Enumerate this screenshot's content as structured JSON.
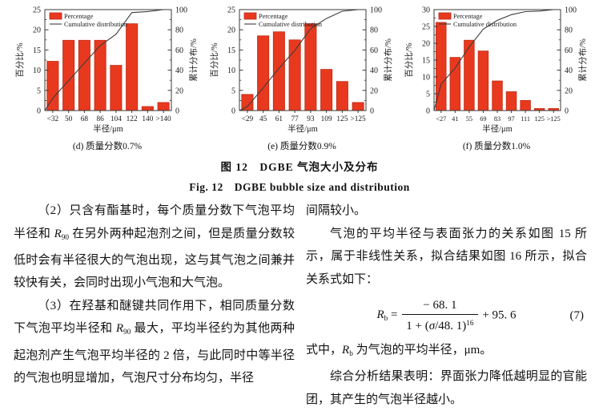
{
  "figure_caption": {
    "zh": "图 12　DGBE 气泡大小及分布",
    "en": "Fig. 12　DGBE bubble size and distribution"
  },
  "chart_data": [
    {
      "type": "bar",
      "subtype": "histogram-with-cumulative-line",
      "caption": "(d) 质量分数0.7%",
      "categories": [
        "<32",
        "50",
        "68",
        "86",
        "104",
        "122",
        "140",
        ">140"
      ],
      "series": [
        {
          "name": "Percentage",
          "type": "bar",
          "values": [
            12.2,
            17.4,
            17.4,
            17.4,
            11.2,
            21.5,
            1.0,
            2.0
          ]
        },
        {
          "name": "Cumulative distribution",
          "type": "line",
          "values": [
            12.2,
            29.6,
            47.0,
            64.4,
            75.6,
            97.1,
            98.1,
            100
          ]
        }
      ],
      "xlabel": "半径/μm",
      "ylabel_left": "百分比/%",
      "ylabel_right": "累计分布/%",
      "ylim_left": [
        0,
        25
      ],
      "ylim_right": [
        0,
        100
      ],
      "yticks_left": [
        0,
        5,
        10,
        15,
        20,
        25
      ],
      "yticks_right": [
        0,
        20,
        40,
        60,
        80,
        100
      ],
      "legend": [
        "Percentage",
        "Cumulative distribution"
      ],
      "legend_position": "top-left",
      "grid": false,
      "bar_color": "#e8391f",
      "bar_stroke": "#bf2a12",
      "line_color": "#3d3d3d",
      "axis_color": "#3a3a3a"
    },
    {
      "type": "bar",
      "subtype": "histogram-with-cumulative-line",
      "caption": "(e) 质量分数0.9%",
      "categories": [
        "<29",
        "45",
        "61",
        "77",
        "93",
        "109",
        "125",
        ">125"
      ],
      "series": [
        {
          "name": "Percentage",
          "type": "bar",
          "values": [
            4.0,
            18.5,
            19.5,
            17.5,
            21.5,
            10.2,
            7.2,
            2.0
          ]
        },
        {
          "name": "Cumulative distribution",
          "type": "line",
          "values": [
            4.0,
            22.5,
            42.0,
            59.5,
            81.0,
            91.2,
            98.4,
            100
          ]
        }
      ],
      "xlabel": "半径/μm",
      "ylabel_left": "百分比/%",
      "ylabel_right": "累计分布/%",
      "ylim_left": [
        0,
        25
      ],
      "ylim_right": [
        0,
        100
      ],
      "yticks_left": [
        0,
        5,
        10,
        15,
        20,
        25
      ],
      "yticks_right": [
        0,
        20,
        40,
        60,
        80,
        100
      ],
      "legend": [
        "Percentage",
        "Cumulative distribution"
      ],
      "legend_position": "top-left",
      "grid": false,
      "bar_color": "#e8391f",
      "bar_stroke": "#bf2a12",
      "line_color": "#3d3d3d",
      "axis_color": "#3a3a3a"
    },
    {
      "type": "bar",
      "subtype": "histogram-with-cumulative-line",
      "caption": "(f) 质量分数1.0%",
      "categories": [
        "<27",
        "41",
        "55",
        "69",
        "83",
        "97",
        "111",
        "125",
        ">125"
      ],
      "series": [
        {
          "name": "Percentage",
          "type": "bar",
          "values": [
            26.2,
            15.8,
            20.9,
            17.7,
            8.8,
            5.6,
            3.0,
            0.6,
            0.6
          ]
        },
        {
          "name": "Cumulative distribution",
          "type": "line",
          "values": [
            26.2,
            42.0,
            62.9,
            80.6,
            89.4,
            95.0,
            98.0,
            98.6,
            100
          ]
        }
      ],
      "xlabel": "半径/μm",
      "ylabel_left": "百分比/%",
      "ylabel_right": "累计分布/%",
      "ylim_left": [
        0,
        30
      ],
      "ylim_right": [
        0,
        100
      ],
      "yticks_left": [
        0,
        5,
        10,
        15,
        20,
        25,
        30
      ],
      "yticks_right": [
        0,
        20,
        40,
        60,
        80,
        100
      ],
      "legend": [
        "Percentage",
        "Cumulative distribution"
      ],
      "legend_position": "top-left",
      "grid": false,
      "bar_color": "#e8391f",
      "bar_stroke": "#bf2a12",
      "line_color": "#3d3d3d",
      "axis_color": "#3a3a3a"
    }
  ],
  "body": {
    "left": {
      "p1": [
        {
          "t": "（2）只含有酯基时，每个质量分数下气泡平均半径和 "
        },
        {
          "t": "R",
          "i": true
        },
        {
          "t": "90",
          "sub": true
        },
        {
          "t": " 在另外两种起泡剂之间，但是质量分数较低时会有半径很大的气泡出现，这与其气泡之间兼并较快有关，会同时出现小气泡和大气泡。"
        }
      ],
      "p2": [
        {
          "t": "（3）在羟基和醚键共同作用下，相同质量分数下气泡平均半径和 "
        },
        {
          "t": "R",
          "i": true
        },
        {
          "t": "90",
          "sub": true
        },
        {
          "t": " 最大，平均半径约为其他两种起泡剂产生气泡平均半径的 2 倍，与此同时中等半径的气泡也明显增加，气泡尺寸分布均匀，半径"
        }
      ]
    },
    "right": {
      "p0": "间隔较小。",
      "p1": "气泡的平均半径与表面张力的关系如图 15 所示，属于非线性关系，拟合结果如图 16 所示，拟合关系式如下：",
      "equation": {
        "lhs": [
          {
            "t": "R",
            "i": true
          },
          {
            "t": "b",
            "sub": true
          },
          {
            "t": " = "
          }
        ],
        "numerator": "− 68. 1",
        "denominator": [
          {
            "t": "1 + ("
          },
          {
            "t": "σ",
            "i": true
          },
          {
            "t": "/48. 1)"
          },
          {
            "t": "16",
            "sup": true
          }
        ],
        "tail": " + 95. 6",
        "number": "(7)"
      },
      "p2": [
        {
          "t": "式中，"
        },
        {
          "t": "R",
          "i": true
        },
        {
          "t": "b",
          "sub": true
        },
        {
          "t": " 为气泡的平均半径，μm。"
        }
      ],
      "p3": "综合分析结果表明：界面张力降低越明显的官能团，其产生的气泡半径越小。"
    }
  }
}
